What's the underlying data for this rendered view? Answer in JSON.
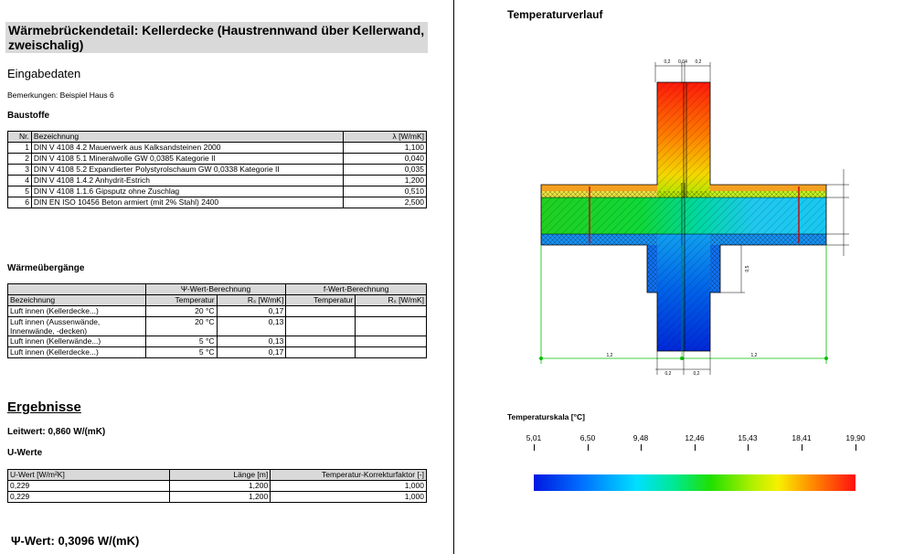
{
  "title": "Wärmebrückendetail: Kellerdecke (Haustrennwand über Kellerwand, zweischalig)",
  "eingabedaten": {
    "heading": "Eingabedaten",
    "bemerkungen": "Bemerkungen: Beispiel Haus 6"
  },
  "baustoffe": {
    "heading": "Baustoffe",
    "headers": [
      "Nr.",
      "Bezeichnung",
      "λ [W/mK]"
    ],
    "rows": [
      {
        "nr": "1",
        "name": "DIN V 4108 4.2 Mauerwerk aus Kalksandsteinen 2000",
        "lambda": "1,100"
      },
      {
        "nr": "2",
        "name": "DIN V 4108 5.1 Mineralwolle GW 0,0385  Kategorie II",
        "lambda": "0,040"
      },
      {
        "nr": "3",
        "name": "DIN V 4108 5.2 Expandierter Polystyrolschaum  GW 0,0338 Kategorie II",
        "lambda": "0,035"
      },
      {
        "nr": "4",
        "name": "DIN V 4108 1.4.2 Anhydrit-Estrich",
        "lambda": "1,200"
      },
      {
        "nr": "5",
        "name": "DIN V 4108 1.1.6 Gipsputz ohne Zuschlag",
        "lambda": "0,510"
      },
      {
        "nr": "6",
        "name": "DIN EN ISO 10456 Beton armiert (mit 2% Stahl) 2400",
        "lambda": "2,500"
      }
    ]
  },
  "waermeuebergaenge": {
    "heading": "Wärmeübergänge",
    "group1": "Ψ-Wert-Berechnung",
    "group2": "f-Wert-Berechnung",
    "col_bez": "Bezeichnung",
    "col_temp": "Temperatur",
    "col_rs": "Rₛ [W/mK]",
    "rows": [
      {
        "name": "Luft innen (Kellerdecke...)",
        "temp": "20 °C",
        "rs": "0,17"
      },
      {
        "name": "Luft innen (Aussenwände, Innenwände, -decken)",
        "temp": "20 °C",
        "rs": "0,13"
      },
      {
        "name": "Luft innen (Kellerwände...)",
        "temp": "5 °C",
        "rs": "0,13"
      },
      {
        "name": "Luft innen (Kellerdecke...)",
        "temp": "5 °C",
        "rs": "0,17"
      }
    ]
  },
  "ergebnisse": {
    "heading": "Ergebnisse",
    "leitwert": "Leitwert: 0,860 W/(mK)",
    "uwerte_heading": "U-Werte",
    "headers": [
      "U-Wert [W/m²K]",
      "Länge [m]",
      "Temperatur-Korrekturfaktor [-]"
    ],
    "rows": [
      {
        "u": "0,229",
        "len": "1,200",
        "f": "1,000"
      },
      {
        "u": "0,229",
        "len": "1,200",
        "f": "1,000"
      }
    ],
    "psi": "Ψ-Wert: 0,3096 W/(mK)"
  },
  "temperaturverlauf": {
    "heading": "Temperaturverlauf",
    "dims": {
      "top": [
        "0,2",
        "0,04",
        "0,2"
      ],
      "bottom": [
        "0,2",
        "0,2"
      ],
      "horizontal": [
        "1,2",
        "1,2"
      ],
      "vertical": "0,5"
    }
  },
  "skala": {
    "heading": "Temperaturskala [°C]",
    "labels": [
      "5,01",
      "6,50",
      "9,48",
      "12,46",
      "15,43",
      "18,41",
      "19,90"
    ]
  },
  "colors": {
    "header_gray": "#d9d9d9",
    "dim_green": "#00c000"
  }
}
